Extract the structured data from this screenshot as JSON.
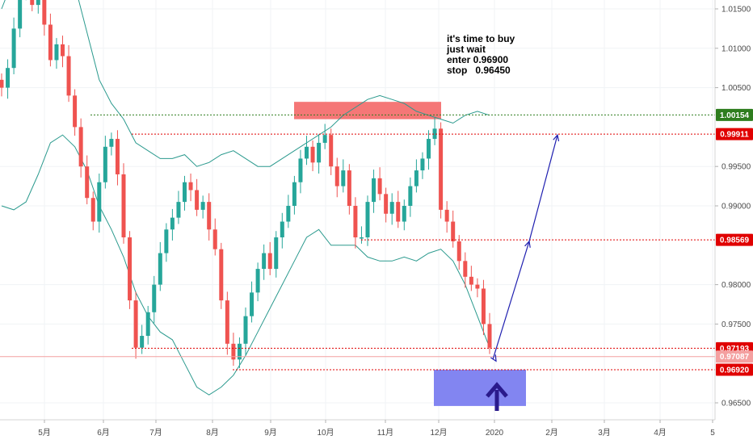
{
  "annotation": {
    "lines": [
      "it's time to buy",
      "just wait",
      "enter 0.96900",
      "stop   0.96450"
    ]
  },
  "colors": {
    "up": "#26a69a",
    "down": "#ef5350",
    "band": "#2b9a8e",
    "level_red": "#e00000",
    "level_green": "#2e7d1e",
    "resistance_box": "#f47070",
    "buy_box": "#7b7ef0",
    "projection": "#2020b0",
    "buy_arrow": "#2a1a8c"
  },
  "chart_data": {
    "type": "candlestick",
    "title": "",
    "xlabel": "",
    "ylabel": "",
    "x_ticks": [
      "5月",
      "6月",
      "7月",
      "8月",
      "9月",
      "10月",
      "11月",
      "12月",
      "2020",
      "2月",
      "3月",
      "4月",
      "5"
    ],
    "y_ticks": [
      "1.01500",
      "1.01000",
      "1.00500",
      "0.99500",
      "0.99000",
      "0.98000",
      "0.97500",
      "0.96500"
    ],
    "ylim": [
      0.961,
      1.0195
    ],
    "price_tags": [
      {
        "label": "1.00154",
        "value": 1.00154,
        "color": "#2e7d1e"
      },
      {
        "label": "0.99911",
        "value": 0.99911,
        "color": "#e00000"
      },
      {
        "label": "0.98569",
        "value": 0.98569,
        "color": "#e00000"
      },
      {
        "label": "0.97193",
        "value": 0.97193,
        "color": "#e00000"
      },
      {
        "label": "0.97087",
        "value": 0.97087,
        "color": "#f4a0a0"
      },
      {
        "label": "0.96920",
        "value": 0.9692,
        "color": "#e00000"
      }
    ],
    "levels": [
      {
        "value": 1.00154,
        "x_start": "6月",
        "style": "dotted-green"
      },
      {
        "value": 0.99911,
        "x_start": "7月",
        "style": "dotted-red"
      },
      {
        "value": 0.98569,
        "x_start": "11月",
        "style": "dotted-red"
      },
      {
        "value": 0.97193,
        "x_start": "7月",
        "style": "dotted-red"
      },
      {
        "value": 0.97087,
        "x_start": "start",
        "style": "thin-pink"
      },
      {
        "value": 0.9692,
        "x_start": "8月",
        "style": "dotted-red"
      }
    ],
    "zones": [
      {
        "name": "resistance",
        "x_from": "9月",
        "x_to": "12月",
        "y_from": 1.001,
        "y_to": 1.0032
      },
      {
        "name": "buy",
        "x_from": "12月",
        "x_to": "2020",
        "y_from": 0.9646,
        "y_to": 0.9692
      }
    ],
    "projection_path": [
      0.9705,
      0.9855,
      0.999
    ],
    "close_series": [
      1.005,
      1.0075,
      1.0125,
      1.0175,
      1.019,
      1.0155,
      1.018,
      1.013,
      1.0085,
      1.0105,
      1.009,
      1.004,
      1.0,
      0.995,
      0.991,
      0.988,
      0.993,
      0.9975,
      0.9985,
      0.994,
      0.986,
      0.978,
      0.972,
      0.9735,
      0.9765,
      0.98,
      0.984,
      0.987,
      0.9885,
      0.9905,
      0.993,
      0.992,
      0.9895,
      0.9905,
      0.987,
      0.9845,
      0.978,
      0.9725,
      0.9705,
      0.9725,
      0.976,
      0.979,
      0.982,
      0.984,
      0.982,
      0.986,
      0.988,
      0.99,
      0.993,
      0.996,
      0.9975,
      0.9955,
      0.998,
      0.999,
      0.995,
      0.9925,
      0.9945,
      0.99,
      0.986,
      0.986,
      0.9905,
      0.9935,
      0.9915,
      0.989,
      0.9905,
      0.988,
      0.99,
      0.9925,
      0.9945,
      0.996,
      0.9985,
      0.9998,
      0.9895,
      0.988,
      0.9855,
      0.983,
      0.981,
      0.98,
      0.9795,
      0.975,
      0.972
    ],
    "upper_band": [
      1.015,
      1.019,
      1.02,
      1.02,
      1.0195,
      1.019,
      1.018,
      1.012,
      1.006,
      1.003,
      1.001,
      0.998,
      0.997,
      0.996,
      0.996,
      0.9965,
      0.995,
      0.9955,
      0.9965,
      0.997,
      0.996,
      0.995,
      0.995,
      0.996,
      0.997,
      0.998,
      0.999,
      1.0,
      1.0015,
      1.0025,
      1.0035,
      1.004,
      1.0035,
      1.003,
      1.002,
      1.0015,
      1.001,
      1.0005,
      1.0015,
      1.002,
      1.0015
    ],
    "lower_band": [
      0.99,
      0.9895,
      0.9905,
      0.994,
      0.998,
      0.999,
      0.9975,
      0.9945,
      0.99,
      0.987,
      0.9835,
      0.979,
      0.976,
      0.974,
      0.973,
      0.97,
      0.967,
      0.966,
      0.967,
      0.9685,
      0.971,
      0.974,
      0.977,
      0.98,
      0.983,
      0.986,
      0.987,
      0.985,
      0.985,
      0.985,
      0.9835,
      0.983,
      0.983,
      0.9835,
      0.983,
      0.984,
      0.9845,
      0.983,
      0.98,
      0.976,
      0.972
    ]
  }
}
